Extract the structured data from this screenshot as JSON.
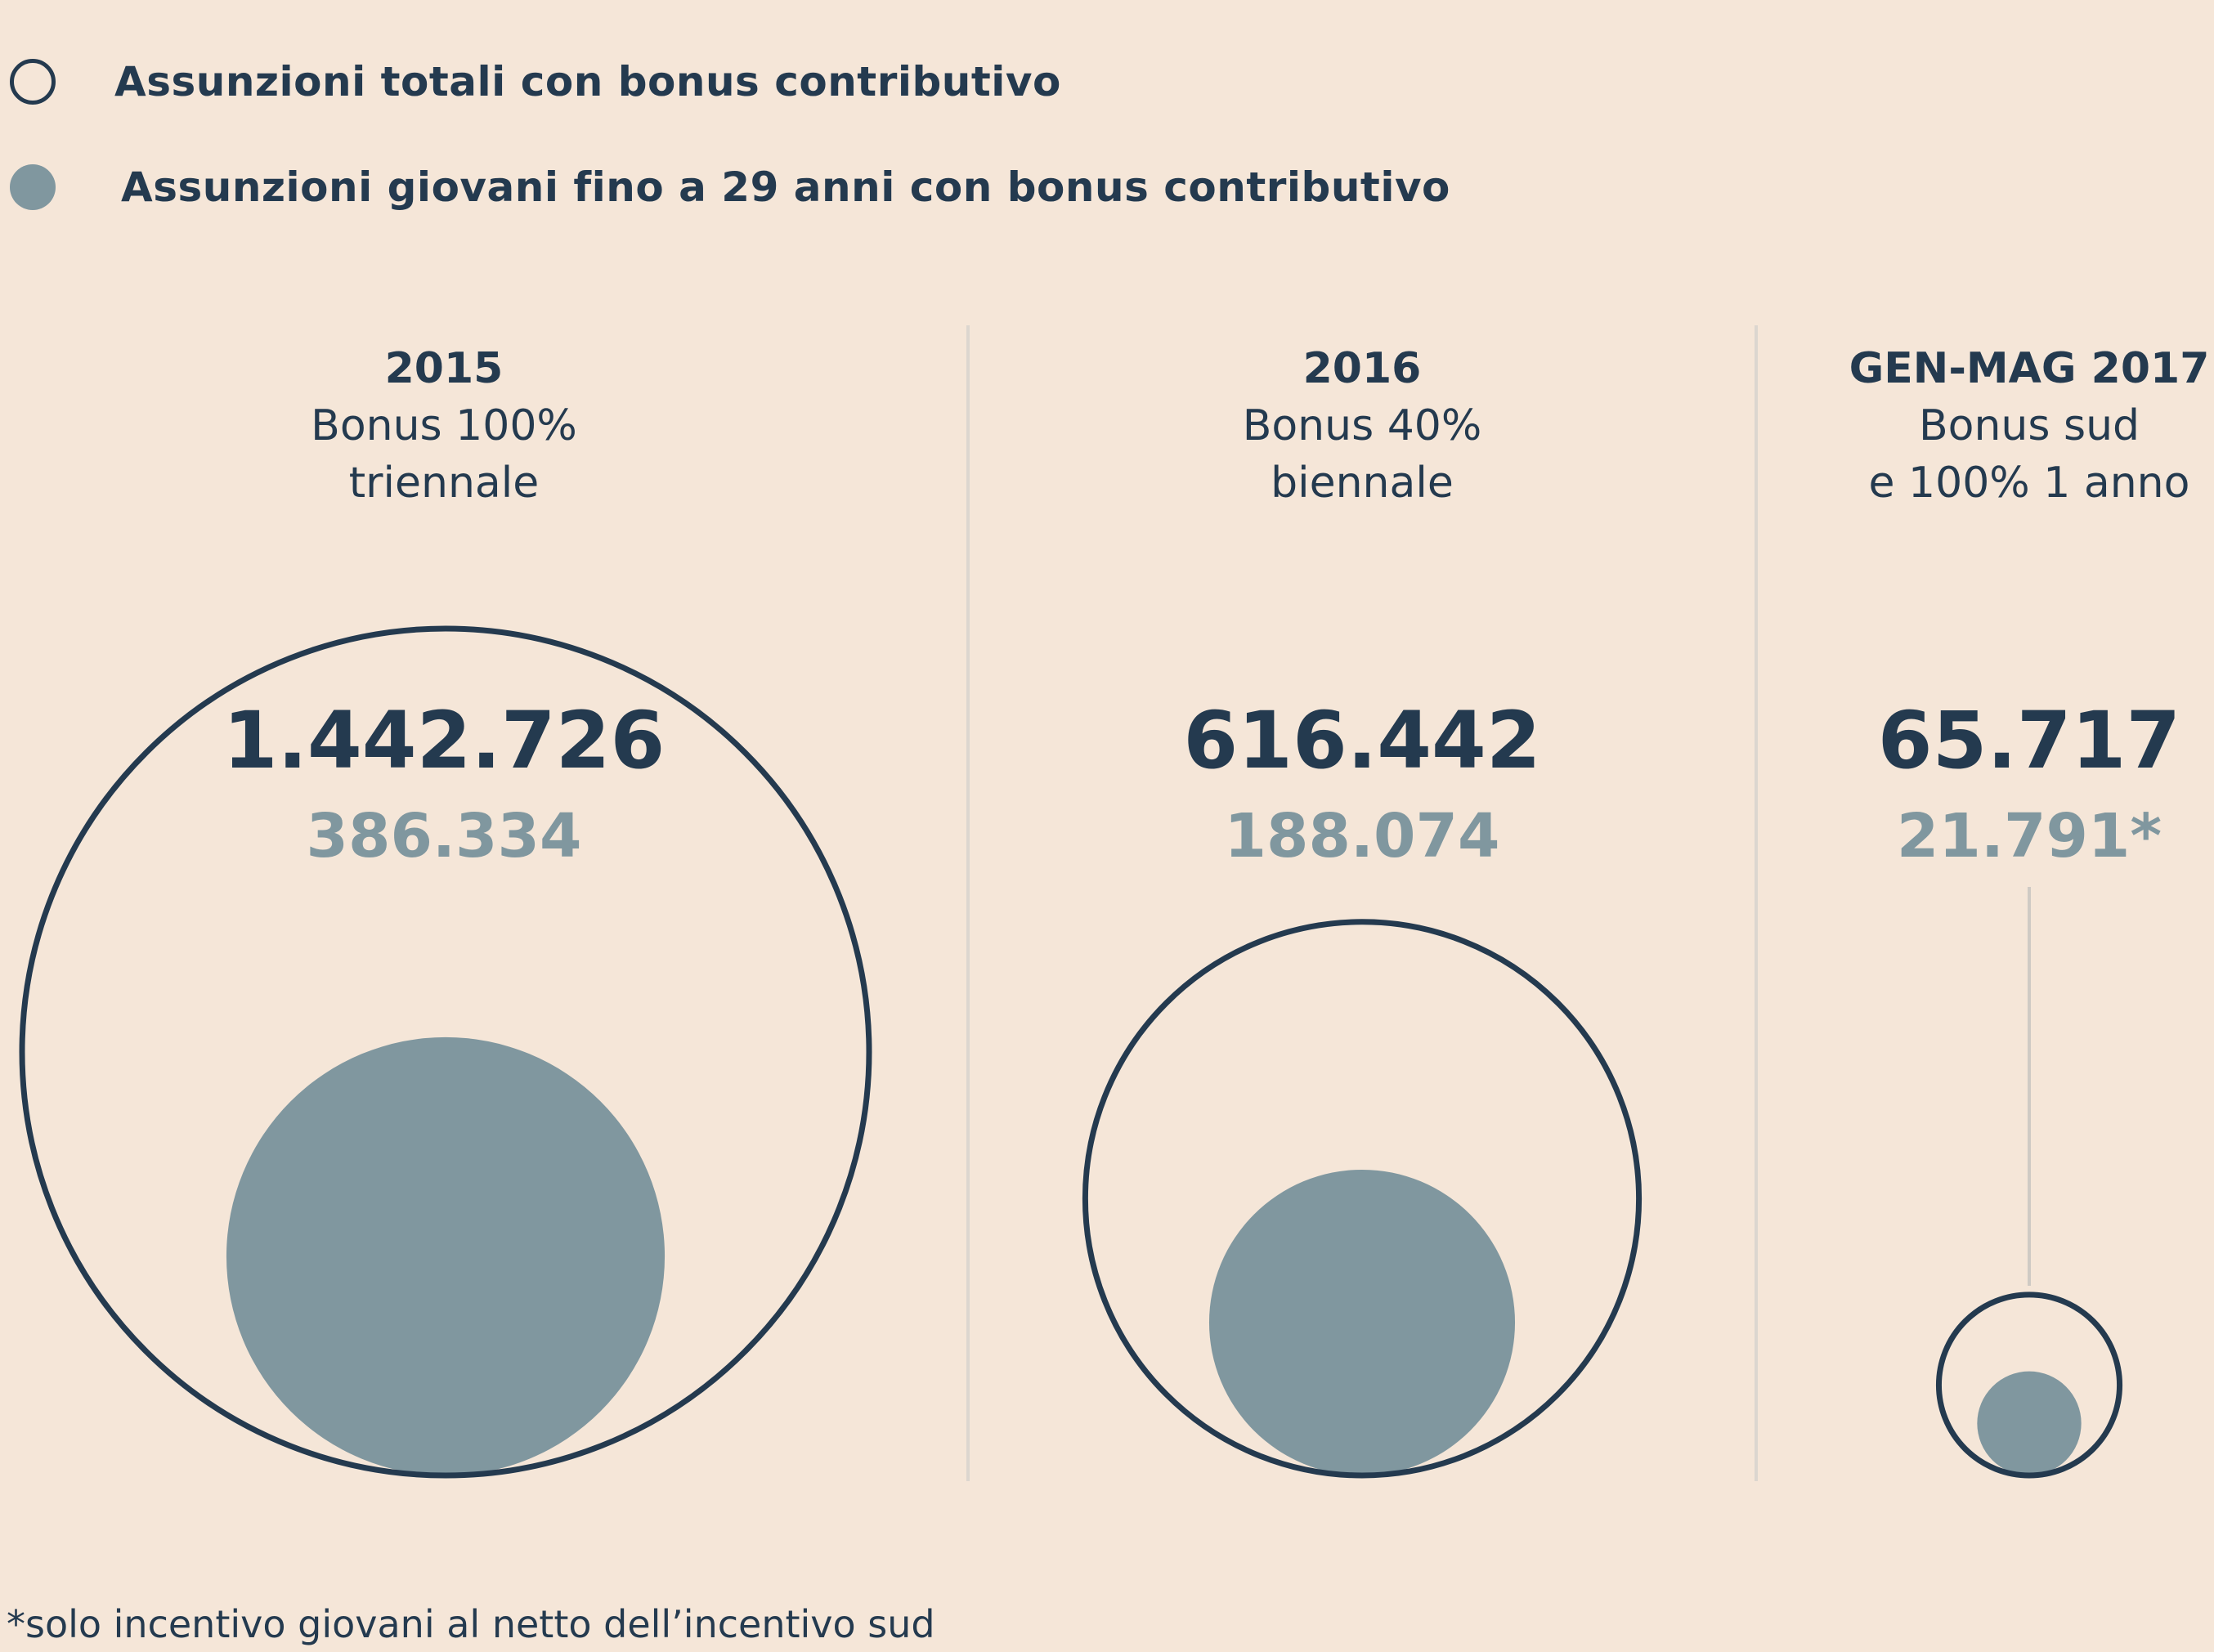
{
  "legend": {
    "total_label": "Assunzioni totali con bonus contributivo",
    "youth_label": "Assunzioni giovani fino a 29 anni con bonus contributivo"
  },
  "panels": [
    {
      "period": "2015",
      "bonus_line1": "Bonus 100%",
      "bonus_line2": "triennale",
      "total_text": "1.442.726",
      "youth_text": "386.334"
    },
    {
      "period": "2016",
      "bonus_line1": "Bonus 40%",
      "bonus_line2": "biennale",
      "total_text": "616.442",
      "youth_text": "188.074"
    },
    {
      "period": "GEN-MAG 2017",
      "bonus_line1": "Bonus sud",
      "bonus_line2": "e 100% 1 anno",
      "total_text": "65.717",
      "youth_text": "21.791*"
    }
  ],
  "footnote": "*solo incentivo giovani al netto dell’incentivo sud",
  "colors": {
    "background": "#f5e6d8",
    "total_outline": "#243a4f",
    "youth_fill": "#80979f",
    "divider": "#dcd6cf"
  },
  "chart_data": {
    "type": "bubble",
    "categories": [
      "2015",
      "2016",
      "GEN-MAG 2017"
    ],
    "series": [
      {
        "name": "Assunzioni totali con bonus contributivo",
        "values": [
          1442726,
          616442,
          65717
        ]
      },
      {
        "name": "Assunzioni giovani fino a 29 anni con bonus contributivo",
        "values": [
          386334,
          188074,
          21791
        ]
      }
    ],
    "annotations": [
      "*solo incentivo giovani al netto dell’incentivo sud"
    ]
  }
}
